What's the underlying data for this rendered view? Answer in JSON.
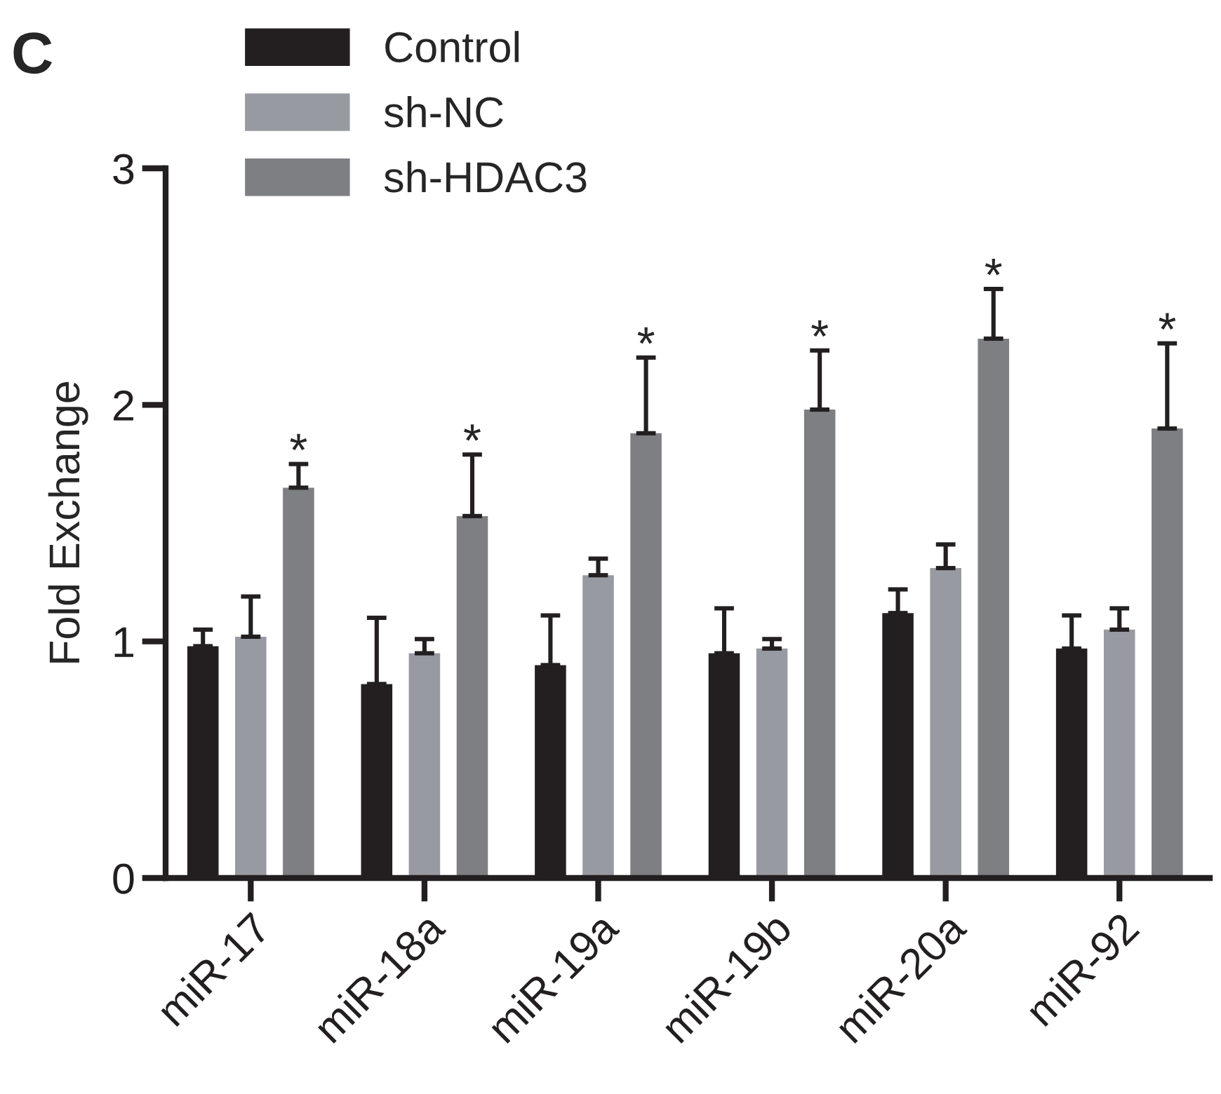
{
  "chart_data": {
    "type": "bar",
    "ylabel": "Fold Exchange",
    "categories": [
      "miR-17",
      "miR-18a",
      "miR-19a",
      "miR-19b",
      "miR-20a",
      "miR-92"
    ],
    "series": [
      {
        "name": "Control",
        "color": "#231f20",
        "values": [
          0.98,
          0.82,
          0.9,
          0.95,
          1.12,
          0.97
        ],
        "errors": [
          [
            0.98,
            1.05
          ],
          [
            0.82,
            1.1
          ],
          [
            0.9,
            1.11
          ],
          [
            0.95,
            1.14
          ],
          [
            1.12,
            1.22
          ],
          [
            0.97,
            1.11
          ]
        ]
      },
      {
        "name": "sh-NC",
        "color": "#989aa2",
        "values": [
          1.02,
          0.95,
          1.28,
          0.97,
          1.31,
          1.05
        ],
        "errors": [
          [
            1.02,
            1.19
          ],
          [
            0.95,
            1.01
          ],
          [
            1.28,
            1.35
          ],
          [
            0.97,
            1.01
          ],
          [
            1.31,
            1.41
          ],
          [
            1.05,
            1.14
          ]
        ]
      },
      {
        "name": "sh-HDAC3",
        "color": "#7e7f83",
        "values": [
          1.65,
          1.53,
          1.88,
          1.98,
          2.28,
          1.9
        ],
        "errors": [
          [
            1.65,
            1.75
          ],
          [
            1.53,
            1.79
          ],
          [
            1.88,
            2.2
          ],
          [
            1.98,
            2.23
          ],
          [
            2.28,
            2.49
          ],
          [
            1.9,
            2.26
          ]
        ]
      }
    ],
    "ylim": [
      0,
      3
    ],
    "yticks": [
      0,
      1,
      2,
      3
    ],
    "grid": false,
    "legend": "top left",
    "annotations": [
      "C",
      "*",
      "*",
      "*",
      "*",
      "*",
      "*"
    ]
  }
}
